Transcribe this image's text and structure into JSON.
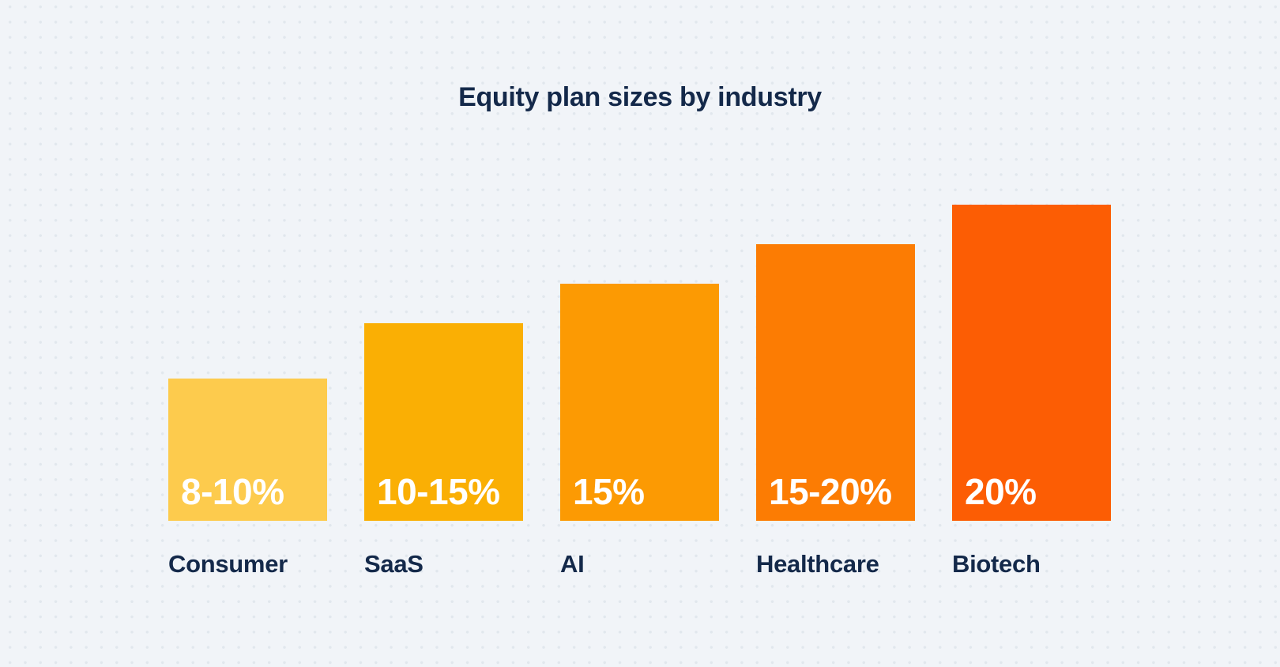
{
  "title": "Equity plan sizes by industry",
  "colors": {
    "background": "#F1F4F8",
    "dot_pattern": "#E1E7ED",
    "heading_text": "#14294A",
    "value_text": "#FFFFFF"
  },
  "chart_data": {
    "type": "bar",
    "title": "Equity plan sizes by industry",
    "xlabel": "",
    "ylabel": "",
    "categories": [
      "Consumer",
      "SaaS",
      "AI",
      "Healthcare",
      "Biotech"
    ],
    "values": [
      9,
      12.5,
      15,
      17.5,
      20
    ],
    "value_labels": [
      "8-10%",
      "10-15%",
      "15%",
      "15-20%",
      "20%"
    ],
    "bar_colors": [
      "#FDCB4D",
      "#FAAF04",
      "#FC9A03",
      "#FC7C03",
      "#FC5D04"
    ],
    "ylim": [
      0,
      22
    ],
    "grid": "dotted background pattern only, no axes",
    "legend": "none",
    "value_label_position": "inside-bottom-left",
    "category_label_position": "below-bar-left-aligned"
  }
}
